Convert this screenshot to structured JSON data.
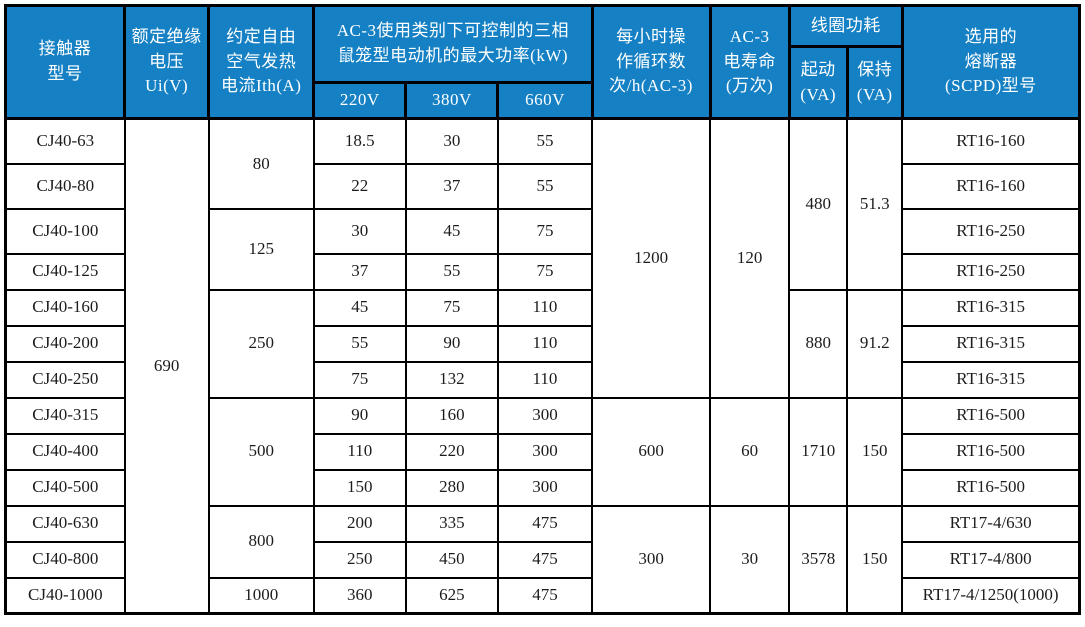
{
  "colors": {
    "header_bg": "#1580c4",
    "header_text": "#ffffff",
    "body_text": "#1c1c1c",
    "border": "#000000",
    "page_bg": "#ffffff"
  },
  "table": {
    "header": {
      "model": "接触器\n型号",
      "voltage": "额定绝缘\n电压Ui(V)",
      "ith": "约定自由\n空气发热\n电流Ith(A)",
      "kw_group": "AC-3使用类别下可控制的三相\n鼠笼型电动机的最大功率(kW)",
      "kw_220": "220V",
      "kw_380": "380V",
      "kw_660": "660V",
      "cycles": "每小时操\n作循环数\n次/h(AC-3)",
      "life": "AC-3\n电寿命\n(万次)",
      "coil_group": "线圈功耗",
      "coil_start": "起动\n(VA)",
      "coil_hold": "保持\n(VA)",
      "fuse": "选用的\n熔断器\n(SCPD)型号"
    },
    "rows": [
      [
        {
          "c": "model",
          "v": "CJ40-63"
        },
        {
          "c": "voltage",
          "v": "690",
          "rs": 13
        },
        {
          "c": "ith",
          "v": "80",
          "rs": 2
        },
        {
          "c": "kw220",
          "v": "18.5"
        },
        {
          "c": "kw380",
          "v": "30"
        },
        {
          "c": "kw660",
          "v": "55"
        },
        {
          "c": "cycles",
          "v": "1200",
          "rs": 7
        },
        {
          "c": "life",
          "v": "120",
          "rs": 7
        },
        {
          "c": "coil-start",
          "v": "480",
          "rs": 4
        },
        {
          "c": "coil-hold",
          "v": "51.3",
          "rs": 4
        },
        {
          "c": "fuse",
          "v": "RT16-160"
        }
      ],
      [
        {
          "c": "model",
          "v": "CJ40-80"
        },
        {
          "c": "kw220",
          "v": "22"
        },
        {
          "c": "kw380",
          "v": "37"
        },
        {
          "c": "kw660",
          "v": "55"
        },
        {
          "c": "fuse",
          "v": "RT16-160"
        }
      ],
      [
        {
          "c": "model",
          "v": "CJ40-100"
        },
        {
          "c": "ith",
          "v": "125",
          "rs": 2
        },
        {
          "c": "kw220",
          "v": "30"
        },
        {
          "c": "kw380",
          "v": "45"
        },
        {
          "c": "kw660",
          "v": "75"
        },
        {
          "c": "fuse",
          "v": "RT16-250"
        }
      ],
      [
        {
          "c": "model",
          "v": "CJ40-125"
        },
        {
          "c": "kw220",
          "v": "37"
        },
        {
          "c": "kw380",
          "v": "55"
        },
        {
          "c": "kw660",
          "v": "75"
        },
        {
          "c": "fuse",
          "v": "RT16-250"
        }
      ],
      [
        {
          "c": "model",
          "v": "CJ40-160"
        },
        {
          "c": "ith",
          "v": "250",
          "rs": 3
        },
        {
          "c": "kw220",
          "v": "45"
        },
        {
          "c": "kw380",
          "v": "75"
        },
        {
          "c": "kw660",
          "v": "110"
        },
        {
          "c": "coil-start",
          "v": "880",
          "rs": 3
        },
        {
          "c": "coil-hold",
          "v": "91.2",
          "rs": 3
        },
        {
          "c": "fuse",
          "v": "RT16-315"
        }
      ],
      [
        {
          "c": "model",
          "v": "CJ40-200"
        },
        {
          "c": "kw220",
          "v": "55"
        },
        {
          "c": "kw380",
          "v": "90"
        },
        {
          "c": "kw660",
          "v": "110"
        },
        {
          "c": "fuse",
          "v": "RT16-315"
        }
      ],
      [
        {
          "c": "model",
          "v": "CJ40-250"
        },
        {
          "c": "kw220",
          "v": "75"
        },
        {
          "c": "kw380",
          "v": "132"
        },
        {
          "c": "kw660",
          "v": "110"
        },
        {
          "c": "fuse",
          "v": "RT16-315"
        }
      ],
      [
        {
          "c": "model",
          "v": "CJ40-315"
        },
        {
          "c": "ith",
          "v": "500",
          "rs": 3
        },
        {
          "c": "kw220",
          "v": "90"
        },
        {
          "c": "kw380",
          "v": "160"
        },
        {
          "c": "kw660",
          "v": "300"
        },
        {
          "c": "cycles",
          "v": "600",
          "rs": 3
        },
        {
          "c": "life",
          "v": "60",
          "rs": 3
        },
        {
          "c": "coil-start",
          "v": "1710",
          "rs": 3
        },
        {
          "c": "coil-hold",
          "v": "150",
          "rs": 3
        },
        {
          "c": "fuse",
          "v": "RT16-500"
        }
      ],
      [
        {
          "c": "model",
          "v": "CJ40-400"
        },
        {
          "c": "kw220",
          "v": "110"
        },
        {
          "c": "kw380",
          "v": "220"
        },
        {
          "c": "kw660",
          "v": "300"
        },
        {
          "c": "fuse",
          "v": "RT16-500"
        }
      ],
      [
        {
          "c": "model",
          "v": "CJ40-500"
        },
        {
          "c": "kw220",
          "v": "150"
        },
        {
          "c": "kw380",
          "v": "280"
        },
        {
          "c": "kw660",
          "v": "300"
        },
        {
          "c": "fuse",
          "v": "RT16-500"
        }
      ],
      [
        {
          "c": "model",
          "v": "CJ40-630"
        },
        {
          "c": "ith",
          "v": "800",
          "rs": 2
        },
        {
          "c": "kw220",
          "v": "200"
        },
        {
          "c": "kw380",
          "v": "335"
        },
        {
          "c": "kw660",
          "v": "475"
        },
        {
          "c": "cycles",
          "v": "300",
          "rs": 3
        },
        {
          "c": "life",
          "v": "30",
          "rs": 3
        },
        {
          "c": "coil-start",
          "v": "3578",
          "rs": 3
        },
        {
          "c": "coil-hold",
          "v": "150",
          "rs": 3
        },
        {
          "c": "fuse",
          "v": "RT17-4/630"
        }
      ],
      [
        {
          "c": "model",
          "v": "CJ40-800"
        },
        {
          "c": "kw220",
          "v": "250"
        },
        {
          "c": "kw380",
          "v": "450"
        },
        {
          "c": "kw660",
          "v": "475"
        },
        {
          "c": "fuse",
          "v": "RT17-4/800"
        }
      ],
      [
        {
          "c": "model",
          "v": "CJ40-1000"
        },
        {
          "c": "ith",
          "v": "1000"
        },
        {
          "c": "kw220",
          "v": "360"
        },
        {
          "c": "kw380",
          "v": "625"
        },
        {
          "c": "kw660",
          "v": "475"
        },
        {
          "c": "fuse",
          "v": "RT17-4/1250(1000)"
        }
      ]
    ]
  }
}
